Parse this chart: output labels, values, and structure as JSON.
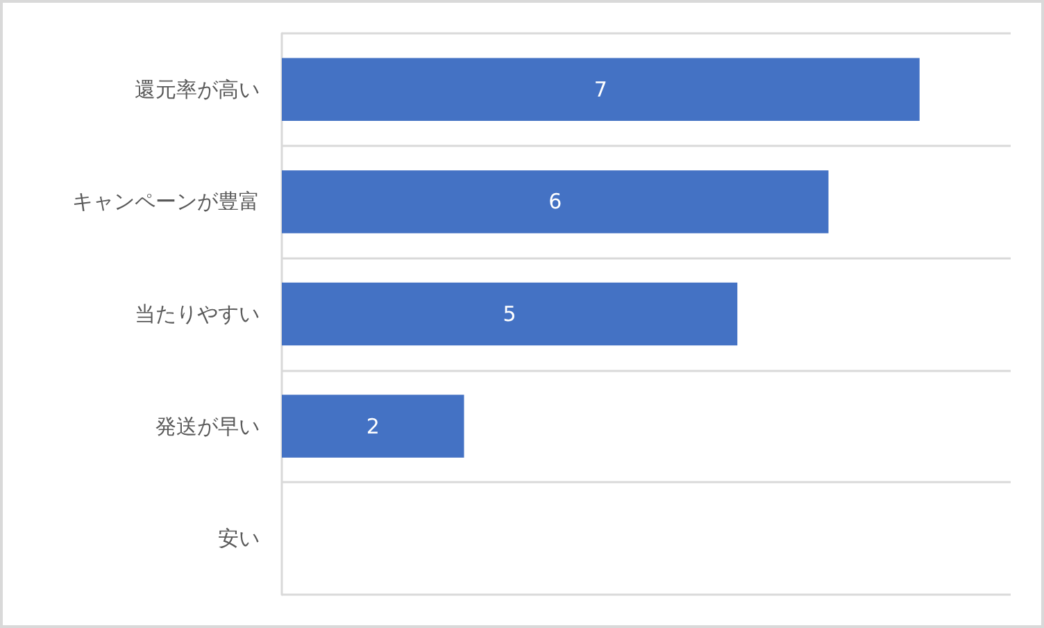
{
  "chart_data": {
    "type": "bar",
    "orientation": "horizontal",
    "categories": [
      "還元率が高い",
      "キャンペーンが豊富",
      "当たりやすい",
      "発送が早い",
      "安い"
    ],
    "values": [
      7,
      6,
      5,
      2,
      0
    ],
    "color": "#4472c4",
    "value_labels": [
      "7",
      "6",
      "5",
      "2",
      null
    ],
    "xlim": [
      0,
      8
    ],
    "tick_labels": "y",
    "grid": "y"
  }
}
